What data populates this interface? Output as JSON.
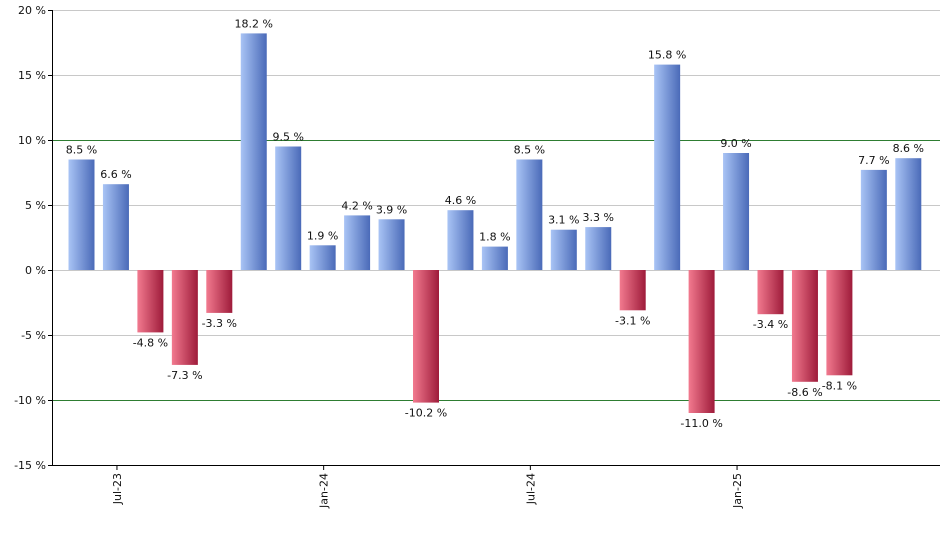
{
  "chart_data": {
    "type": "bar",
    "title": "",
    "xlabel": "",
    "ylabel": "",
    "ylim": [
      -15,
      20
    ],
    "yticks": [
      20,
      15,
      10,
      5,
      0,
      -5,
      -10,
      -15
    ],
    "ytick_labels": [
      "20 %",
      "15 %",
      "10 %",
      "5 %",
      "0 %",
      "-5 %",
      "-10 %",
      "-15 %"
    ],
    "reference_lines": [
      10,
      -10
    ],
    "grid": true,
    "x_labels": [
      {
        "label": "Jul-23",
        "index": 1
      },
      {
        "label": "Jan-24",
        "index": 7
      },
      {
        "label": "Jul-24",
        "index": 13
      },
      {
        "label": "Jan-25",
        "index": 19
      }
    ],
    "values": [
      8.5,
      6.6,
      -4.8,
      -7.3,
      -3.3,
      18.2,
      9.5,
      1.9,
      4.2,
      3.9,
      -10.2,
      4.6,
      1.8,
      8.5,
      3.1,
      3.3,
      -3.1,
      15.8,
      -11.0,
      9.0,
      -3.4,
      -8.6,
      -8.1,
      7.7,
      8.6
    ],
    "data_labels": [
      "8.5 %",
      "6.6 %",
      "-4.8 %",
      "-7.3 %",
      "-3.3 %",
      "18.2 %",
      "9.5 %",
      "1.9 %",
      "4.2 %",
      "3.9 %",
      "-10.2 %",
      "4.6 %",
      "1.8 %",
      "8.5 %",
      "3.1 %",
      "3.3 %",
      "-3.1 %",
      "15.8 %",
      "-11.0 %",
      "9.0 %",
      "-3.4 %",
      "-8.6 %",
      "-8.1 %",
      "7.7 %",
      "8.6 %"
    ],
    "colors": {
      "positive_light": "#a9c4f5",
      "positive_dark": "#4a6ab8",
      "negative_light": "#f27a8f",
      "negative_dark": "#9e1b3a",
      "grid": "#c8c8c8",
      "reference": "#2e7d32",
      "axis": "#000000"
    }
  }
}
